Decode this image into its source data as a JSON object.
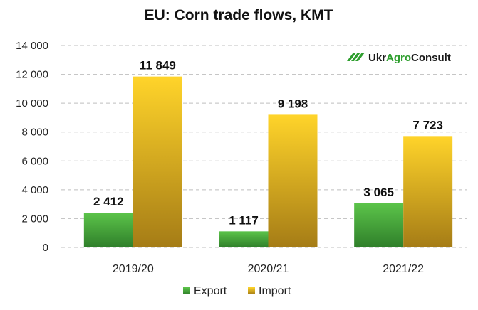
{
  "chart_data": {
    "type": "bar",
    "title": "EU: Corn trade flows, KMT",
    "categories": [
      "2019/20",
      "2020/21",
      "2021/22"
    ],
    "series": [
      {
        "name": "Export",
        "values": [
          2412,
          1117,
          3065
        ],
        "labels": [
          "2 412",
          "1 117",
          "3 065"
        ]
      },
      {
        "name": "Import",
        "values": [
          11849,
          9198,
          7723
        ],
        "labels": [
          "11 849",
          "9 198",
          "7 723"
        ]
      }
    ],
    "ylim": [
      0,
      14000
    ],
    "yticks": [
      0,
      2000,
      4000,
      6000,
      8000,
      10000,
      12000,
      14000
    ],
    "ytick_labels": [
      "0",
      "2 000",
      "4 000",
      "6 000",
      "8 000",
      "10 000",
      "12 000",
      "14 000"
    ],
    "grid": true,
    "legend_position": "bottom",
    "colors": {
      "Export": "#4caf3a",
      "Import": "#f2c21b"
    }
  },
  "logo": {
    "text_part1": "Ukr",
    "text_part2": "Agro",
    "text_part3": "Consult",
    "color_dark": "#1a1a1a",
    "color_green": "#2e9e2e"
  }
}
